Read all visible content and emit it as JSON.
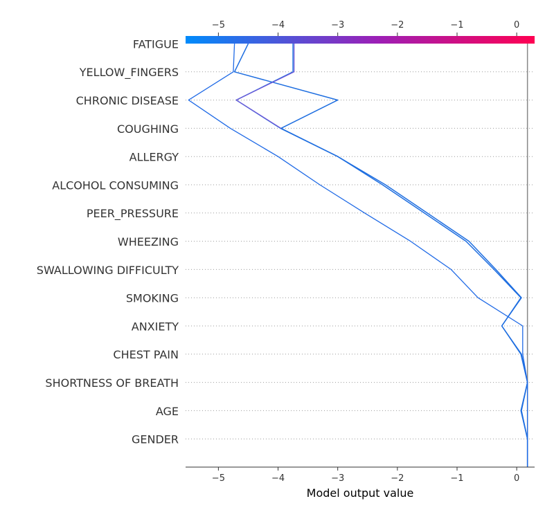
{
  "chart_data": {
    "type": "line",
    "subtype": "shap-decision-plot",
    "title": "",
    "xlabel": "Model output value",
    "ylabel": "",
    "xlim": [
      -5.55,
      0.3
    ],
    "xticks": [
      -5,
      -4,
      -3,
      -2,
      -1,
      0
    ],
    "xtick_labels": [
      "−5",
      "−4",
      "−3",
      "−2",
      "−1",
      "0"
    ],
    "base_value": 0.18,
    "grid": "dotted horizontal",
    "colorbar": {
      "position": "top",
      "low_color": "#008bfb",
      "high_color": "#ff0052"
    },
    "features": [
      "FATIGUE ",
      "YELLOW_FINGERS",
      "CHRONIC DISEASE",
      "COUGHING",
      "ALLERGY ",
      "ALCOHOL CONSUMING",
      "PEER_PRESSURE",
      "WHEEZING",
      "SWALLOWING DIFFICULTY",
      "SMOKING",
      "ANXIETY",
      "CHEST PAIN",
      "SHORTNESS OF BREATH",
      "AGE",
      "GENDER"
    ],
    "series": [
      {
        "color": "#1e6ee0",
        "width": 1.5,
        "values": [
          0.18,
          0.18,
          0.07,
          0.18,
          0.07,
          -0.25,
          0.08,
          -0.35,
          -0.8,
          -1.5,
          -2.2,
          -3.0,
          -3.95,
          -3.0,
          -4.73,
          -4.5
        ]
      },
      {
        "color": "#1e6ee0",
        "width": 1.5,
        "values": [
          0.18,
          0.18,
          0.08,
          0.18,
          0.08,
          -0.25,
          0.07,
          -0.38,
          -0.85,
          -1.55,
          -2.25,
          -3.0,
          -3.96,
          -4.7,
          -3.75,
          -3.75
        ]
      },
      {
        "color": "#1f6ae6",
        "width": 1.3,
        "values": [
          0.18,
          0.18,
          0.18,
          0.18,
          0.1,
          0.1,
          -0.65,
          -1.1,
          -1.78,
          -2.55,
          -3.3,
          -4.0,
          -4.8,
          -5.5,
          -4.75,
          -4.73
        ]
      },
      {
        "color": "#7358d6",
        "width": 1.2,
        "values": [
          null,
          null,
          null,
          null,
          null,
          null,
          null,
          null,
          null,
          null,
          null,
          null,
          -3.95,
          -4.7,
          -3.73,
          -3.73
        ]
      }
    ]
  }
}
